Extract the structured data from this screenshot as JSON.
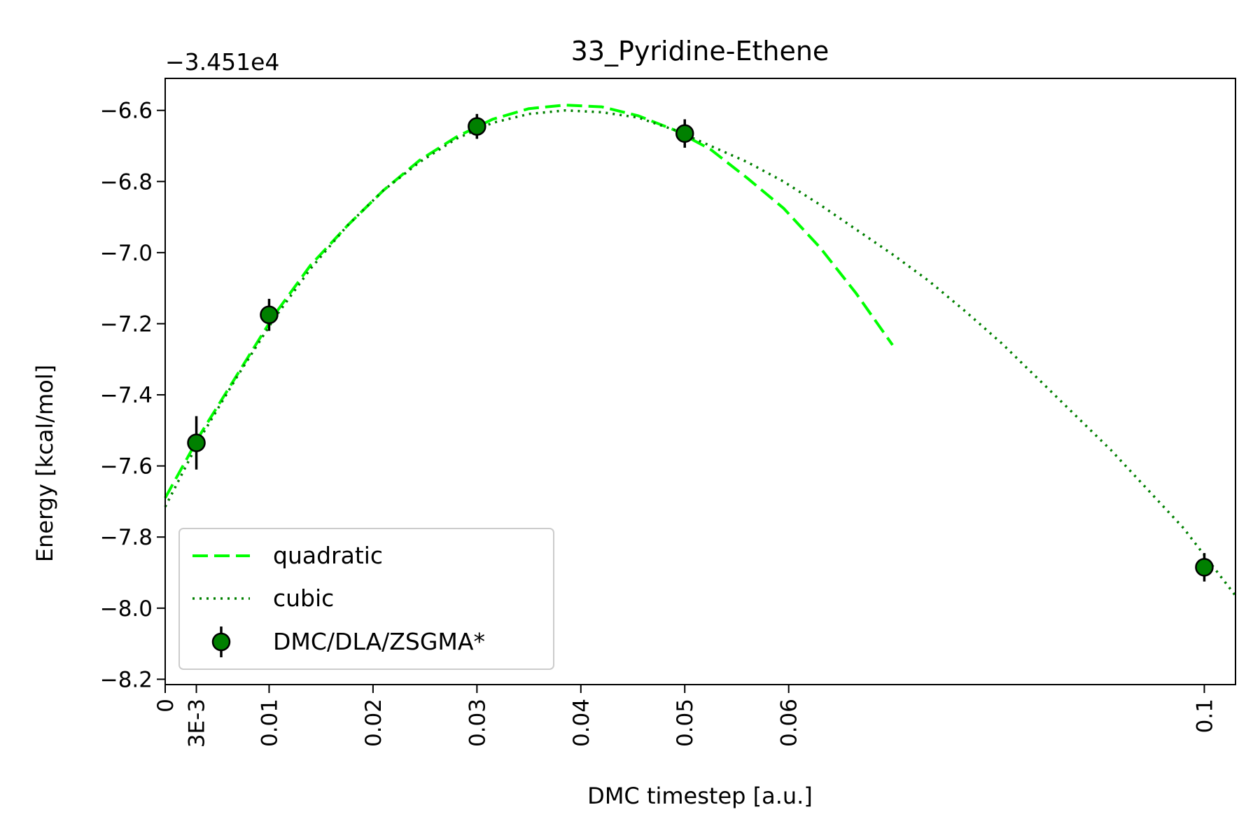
{
  "chart_data": {
    "type": "scatter",
    "title": "33_Pyridine-Ethene",
    "xlabel": "DMC timestep [a.u.]",
    "ylabel": "Energy [kcal/mol]",
    "offset_label": "−3.451e4",
    "xlim": [
      0,
      0.103
    ],
    "ylim": [
      -8.215,
      -6.51
    ],
    "grid": false,
    "legend_position": "lower-left",
    "x_ticks": [
      {
        "value": 0,
        "label": "0"
      },
      {
        "value": 0.003,
        "label": "3E-3"
      },
      {
        "value": 0.01,
        "label": "0.01"
      },
      {
        "value": 0.02,
        "label": "0.02"
      },
      {
        "value": 0.03,
        "label": "0.03"
      },
      {
        "value": 0.04,
        "label": "0.04"
      },
      {
        "value": 0.05,
        "label": "0.05"
      },
      {
        "value": 0.06,
        "label": "0.06"
      },
      {
        "value": 0.1,
        "label": "0.1"
      }
    ],
    "y_ticks": [
      {
        "value": -6.6,
        "label": "−6.6"
      },
      {
        "value": -6.8,
        "label": "−6.8"
      },
      {
        "value": -7.0,
        "label": "−7.0"
      },
      {
        "value": -7.2,
        "label": "−7.2"
      },
      {
        "value": -7.4,
        "label": "−7.4"
      },
      {
        "value": -7.6,
        "label": "−7.6"
      },
      {
        "value": -7.8,
        "label": "−7.8"
      },
      {
        "value": -8.0,
        "label": "−8.0"
      },
      {
        "value": -8.2,
        "label": "−8.2"
      }
    ],
    "series": [
      {
        "name": "quadratic",
        "style": "dashed",
        "color": "#00ff00",
        "x": [
          0,
          0.0035,
          0.007,
          0.0105,
          0.014,
          0.0175,
          0.021,
          0.0245,
          0.028,
          0.0315,
          0.035,
          0.0385,
          0.042,
          0.0455,
          0.049,
          0.0525,
          0.056,
          0.0595,
          0.063,
          0.0665,
          0.07
        ],
        "y": [
          -7.69,
          -7.505,
          -7.34,
          -7.175,
          -7.035,
          -6.925,
          -6.825,
          -6.74,
          -6.675,
          -6.625,
          -6.595,
          -6.585,
          -6.59,
          -6.615,
          -6.655,
          -6.71,
          -6.79,
          -6.875,
          -6.985,
          -7.115,
          -7.26
        ]
      },
      {
        "name": "cubic",
        "style": "dotted",
        "color": "#008000",
        "x": [
          0,
          0.0035,
          0.007,
          0.0105,
          0.014,
          0.0175,
          0.021,
          0.0245,
          0.028,
          0.0315,
          0.035,
          0.0385,
          0.042,
          0.0455,
          0.049,
          0.0525,
          0.056,
          0.0595,
          0.063,
          0.0665,
          0.07,
          0.0735,
          0.077,
          0.0805,
          0.084,
          0.0875,
          0.091,
          0.0945,
          0.098,
          0.103
        ],
        "y": [
          -7.715,
          -7.515,
          -7.345,
          -7.185,
          -7.045,
          -6.925,
          -6.825,
          -6.745,
          -6.68,
          -6.635,
          -6.61,
          -6.6,
          -6.605,
          -6.62,
          -6.655,
          -6.7,
          -6.745,
          -6.8,
          -6.865,
          -6.935,
          -7.005,
          -7.08,
          -7.165,
          -7.255,
          -7.355,
          -7.455,
          -7.555,
          -7.665,
          -7.775,
          -7.965
        ]
      },
      {
        "name": "DMC/DLA/ZSGMA*",
        "style": "errorbar-markers",
        "color": "#008000",
        "x": [
          0.003,
          0.01,
          0.03,
          0.05,
          0.1
        ],
        "y": [
          -7.535,
          -7.175,
          -6.645,
          -6.665,
          -7.885
        ],
        "yerr": [
          0.075,
          0.045,
          0.035,
          0.04,
          0.04
        ]
      }
    ]
  }
}
